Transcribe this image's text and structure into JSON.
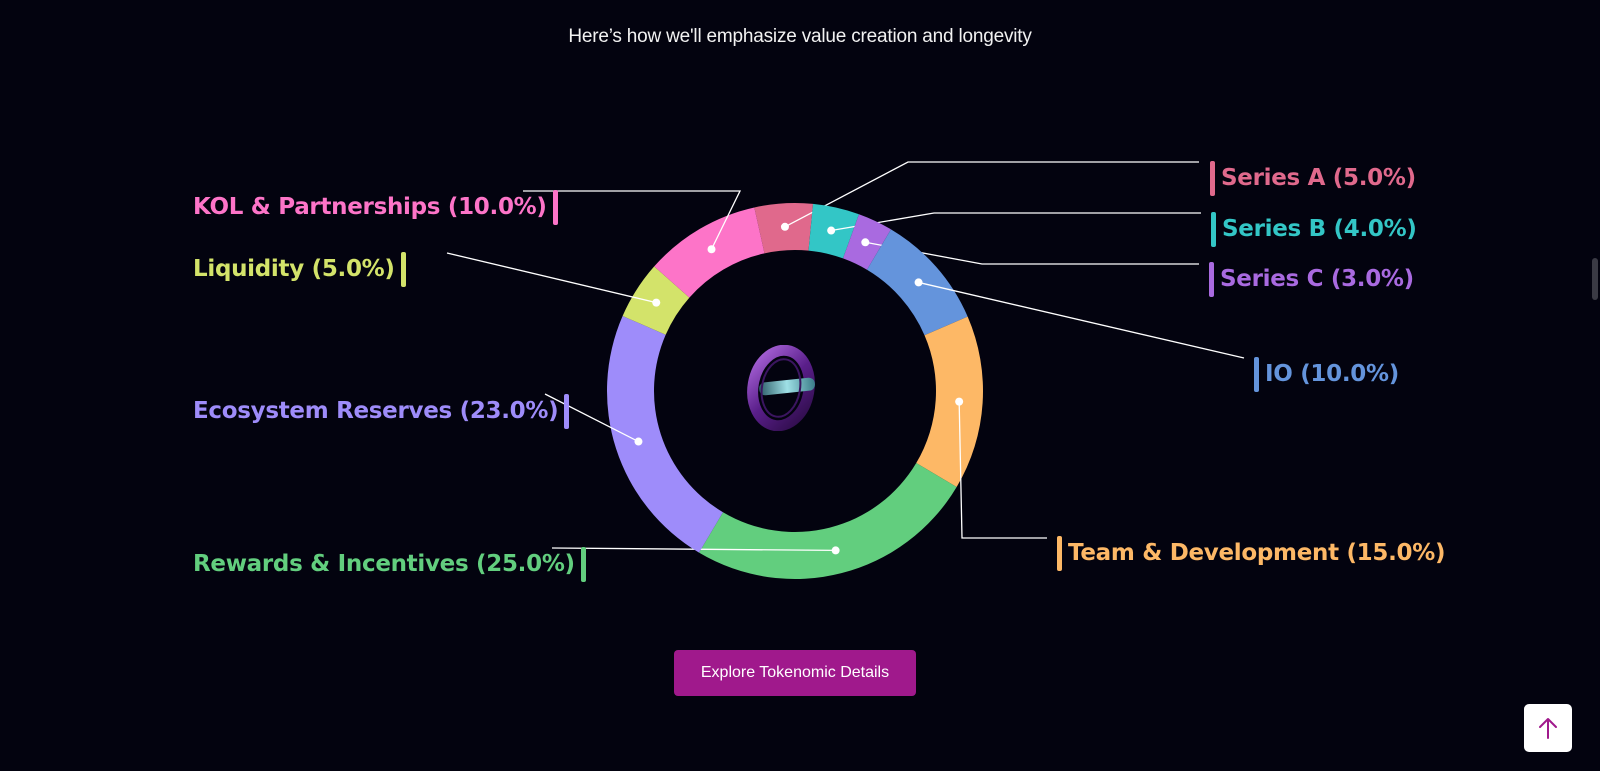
{
  "header": {
    "subtitle": "Here’s how we'll emphasize value creation and longevity"
  },
  "chart_data": {
    "type": "pie",
    "variant": "donut",
    "start_angle_deg": -12.5,
    "segments": [
      {
        "label": "Series A (5.0%)",
        "name": "Series A",
        "value": 5.0,
        "color": "#e0698c"
      },
      {
        "label": "Series B (4.0%)",
        "name": "Series B",
        "value": 4.0,
        "color": "#33c6c6"
      },
      {
        "label": "Series C (3.0%)",
        "name": "Series C",
        "value": 3.0,
        "color": "#a96ae0"
      },
      {
        "label": "IO (10.0%)",
        "name": "IO",
        "value": 10.0,
        "color": "#6494dc"
      },
      {
        "label": "Team & Development (15.0%)",
        "name": "Team & Development",
        "value": 15.0,
        "color": "#fdb866"
      },
      {
        "label": "Rewards & Incentives (25.0%)",
        "name": "Rewards & Incentives",
        "value": 25.0,
        "color": "#62ce7e"
      },
      {
        "label": "Ecosystem Reserves (23.0%)",
        "name": "Ecosystem Reserves",
        "value": 23.0,
        "color": "#9e8cfa"
      },
      {
        "label": "Liquidity (5.0%)",
        "name": "Liquidity",
        "value": 5.0,
        "color": "#d3e36a"
      },
      {
        "label": "KOL & Partnerships (10.0%)",
        "name": "KOL & Partnerships",
        "value": 10.0,
        "color": "#fd74c8"
      }
    ]
  },
  "actions": {
    "explore_label": "Explore Tokenomic Details"
  },
  "icons": {
    "center": "token-ring-icon",
    "scroll_top": "arrow-up-icon"
  },
  "colors": {
    "background": "#03030f",
    "cta": "#a0198c",
    "leader_line": "#ffffff"
  }
}
